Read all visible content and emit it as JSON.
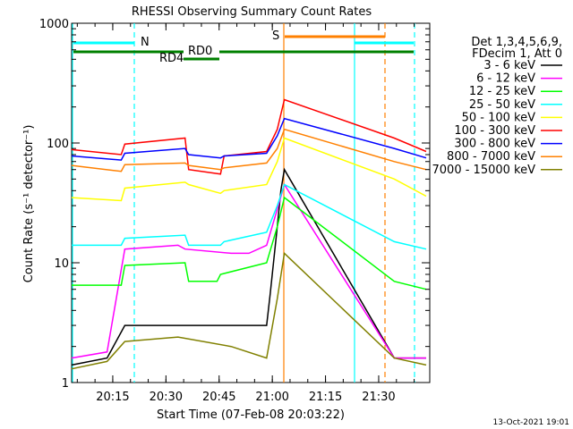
{
  "chart_data": {
    "type": "line",
    "title": "RHESSI Observing Summary Count Rates",
    "xlabel": "Start Time (07-Feb-08 20:03:22)",
    "ylabel": "Count Rate (s⁻¹ detector⁻¹)",
    "y_scale": "log",
    "ylim": [
      1,
      1000
    ],
    "xlim_minutes_from_start": [
      0,
      101
    ],
    "x_tick_labels": [
      "20:15",
      "20:30",
      "20:45",
      "21:00",
      "21:15",
      "21:30"
    ],
    "y_tick_labels": [
      "1",
      "10",
      "100",
      "1000"
    ],
    "legend": {
      "placement": "right",
      "header": [
        "Det 1,3,4,5,6,9,",
        "FDecim 1, Att 0"
      ]
    },
    "series": [
      {
        "name": "3 - 6 keV",
        "color": "#000000",
        "values": [
          [
            0,
            1.4
          ],
          [
            10,
            1.6
          ],
          [
            15,
            3.0
          ],
          [
            30,
            3.0
          ],
          [
            45,
            3.0
          ],
          [
            55,
            3.0
          ],
          [
            56,
            5.5
          ],
          [
            58,
            20
          ],
          [
            59,
            40
          ],
          [
            60,
            60
          ],
          [
            91,
            1.6
          ],
          [
            100,
            1.6
          ]
        ]
      },
      {
        "name": "6 - 12 keV",
        "color": "#ff00ff",
        "values": [
          [
            0,
            1.6
          ],
          [
            10,
            1.8
          ],
          [
            15,
            13
          ],
          [
            30,
            14
          ],
          [
            32,
            13
          ],
          [
            45,
            12
          ],
          [
            50,
            12
          ],
          [
            55,
            14
          ],
          [
            58,
            28
          ],
          [
            60,
            45
          ],
          [
            91,
            1.6
          ],
          [
            100,
            1.6
          ]
        ]
      },
      {
        "name": "12 - 25 keV",
        "color": "#00ff00",
        "values": [
          [
            0,
            6.5
          ],
          [
            14,
            6.5
          ],
          [
            15,
            9.5
          ],
          [
            32,
            10
          ],
          [
            33,
            7
          ],
          [
            41,
            7
          ],
          [
            42,
            8
          ],
          [
            55,
            10
          ],
          [
            58,
            20
          ],
          [
            60,
            35
          ],
          [
            91,
            7
          ],
          [
            100,
            6
          ]
        ]
      },
      {
        "name": "25 - 50 keV",
        "color": "#00ffff",
        "values": [
          [
            0,
            14
          ],
          [
            14,
            14
          ],
          [
            15,
            16
          ],
          [
            32,
            17
          ],
          [
            33,
            14
          ],
          [
            42,
            14
          ],
          [
            43,
            15
          ],
          [
            55,
            18
          ],
          [
            58,
            30
          ],
          [
            60,
            45
          ],
          [
            91,
            15
          ],
          [
            100,
            13
          ]
        ]
      },
      {
        "name": "50 - 100 keV",
        "color": "#ffff00",
        "values": [
          [
            0,
            35
          ],
          [
            14,
            33
          ],
          [
            15,
            42
          ],
          [
            32,
            47
          ],
          [
            33,
            45
          ],
          [
            42,
            38
          ],
          [
            43,
            40
          ],
          [
            55,
            45
          ],
          [
            58,
            70
          ],
          [
            60,
            110
          ],
          [
            91,
            50
          ],
          [
            100,
            36
          ]
        ]
      },
      {
        "name": "100 - 300 keV",
        "color": "#ff0000",
        "values": [
          [
            0,
            88
          ],
          [
            14,
            80
          ],
          [
            15,
            98
          ],
          [
            32,
            110
          ],
          [
            33,
            60
          ],
          [
            42,
            55
          ],
          [
            43,
            78
          ],
          [
            55,
            85
          ],
          [
            58,
            130
          ],
          [
            60,
            230
          ],
          [
            91,
            110
          ],
          [
            100,
            85
          ]
        ]
      },
      {
        "name": "300 - 800 keV",
        "color": "#0000ff",
        "values": [
          [
            0,
            78
          ],
          [
            14,
            72
          ],
          [
            15,
            82
          ],
          [
            32,
            90
          ],
          [
            33,
            80
          ],
          [
            42,
            75
          ],
          [
            43,
            78
          ],
          [
            55,
            82
          ],
          [
            58,
            115
          ],
          [
            60,
            160
          ],
          [
            91,
            90
          ],
          [
            100,
            75
          ]
        ]
      },
      {
        "name": "800 - 7000 keV",
        "color": "#ff8000",
        "values": [
          [
            0,
            65
          ],
          [
            14,
            58
          ],
          [
            15,
            66
          ],
          [
            32,
            68
          ],
          [
            33,
            65
          ],
          [
            42,
            60
          ],
          [
            43,
            62
          ],
          [
            55,
            68
          ],
          [
            58,
            90
          ],
          [
            60,
            130
          ],
          [
            91,
            70
          ],
          [
            100,
            60
          ]
        ]
      },
      {
        "name": "7000 - 15000 keV",
        "color": "#808000",
        "values": [
          [
            0,
            1.3
          ],
          [
            10,
            1.5
          ],
          [
            15,
            2.2
          ],
          [
            30,
            2.4
          ],
          [
            45,
            2.0
          ],
          [
            55,
            1.6
          ],
          [
            58,
            5
          ],
          [
            60,
            12
          ],
          [
            91,
            1.6
          ],
          [
            100,
            1.4
          ]
        ]
      }
    ],
    "annotations": [
      {
        "label": "N",
        "color": "#00ffff"
      },
      {
        "label": "S",
        "color": "#ff8000"
      },
      {
        "label": "RD0",
        "color": "#008000"
      },
      {
        "label": "RD4",
        "color": "#008000"
      }
    ]
  },
  "footer_date": "13-Oct-2021 19:01"
}
